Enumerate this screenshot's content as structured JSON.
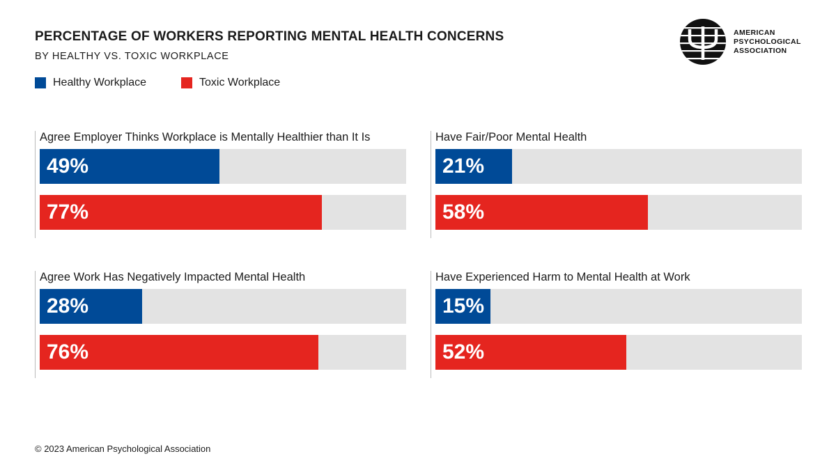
{
  "header": {
    "title": "PERCENTAGE OF WORKERS REPORTING MENTAL HEALTH CONCERNS",
    "subtitle": "BY HEALTHY VS. TOXIC WORKPLACE"
  },
  "legend": [
    {
      "label": "Healthy Workplace",
      "color": "#004a97"
    },
    {
      "label": "Toxic Workplace",
      "color": "#e5251f"
    }
  ],
  "logo": {
    "icon": "psi-icon",
    "line1": "AMERICAN",
    "line2": "PSYCHOLOGICAL",
    "line3": "ASSOCIATION"
  },
  "colors": {
    "healthy": "#004a97",
    "toxic": "#e5251f",
    "track": "#e3e3e3"
  },
  "chart_data": {
    "type": "bar",
    "orientation": "horizontal",
    "title": "PERCENTAGE OF WORKERS REPORTING MENTAL HEALTH CONCERNS",
    "subtitle": "BY HEALTHY VS. TOXIC WORKPLACE",
    "xlim": [
      0,
      100
    ],
    "unit": "%",
    "series_names": [
      "Healthy Workplace",
      "Toxic Workplace"
    ],
    "panels": [
      {
        "title": "Agree Employer Thinks Workplace is Mentally Healthier than It Is",
        "healthy": 49,
        "toxic": 77,
        "healthy_label": "49%",
        "toxic_label": "77%"
      },
      {
        "title": "Have Fair/Poor Mental Health",
        "healthy": 21,
        "toxic": 58,
        "healthy_label": "21%",
        "toxic_label": "58%"
      },
      {
        "title": "Agree Work Has Negatively Impacted Mental Health",
        "healthy": 28,
        "toxic": 76,
        "healthy_label": "28%",
        "toxic_label": "76%"
      },
      {
        "title": "Have Experienced Harm to Mental Health at Work",
        "healthy": 15,
        "toxic": 52,
        "healthy_label": "15%",
        "toxic_label": "52%"
      }
    ]
  },
  "footer": {
    "copyright": "© 2023 American Psychological Association"
  }
}
